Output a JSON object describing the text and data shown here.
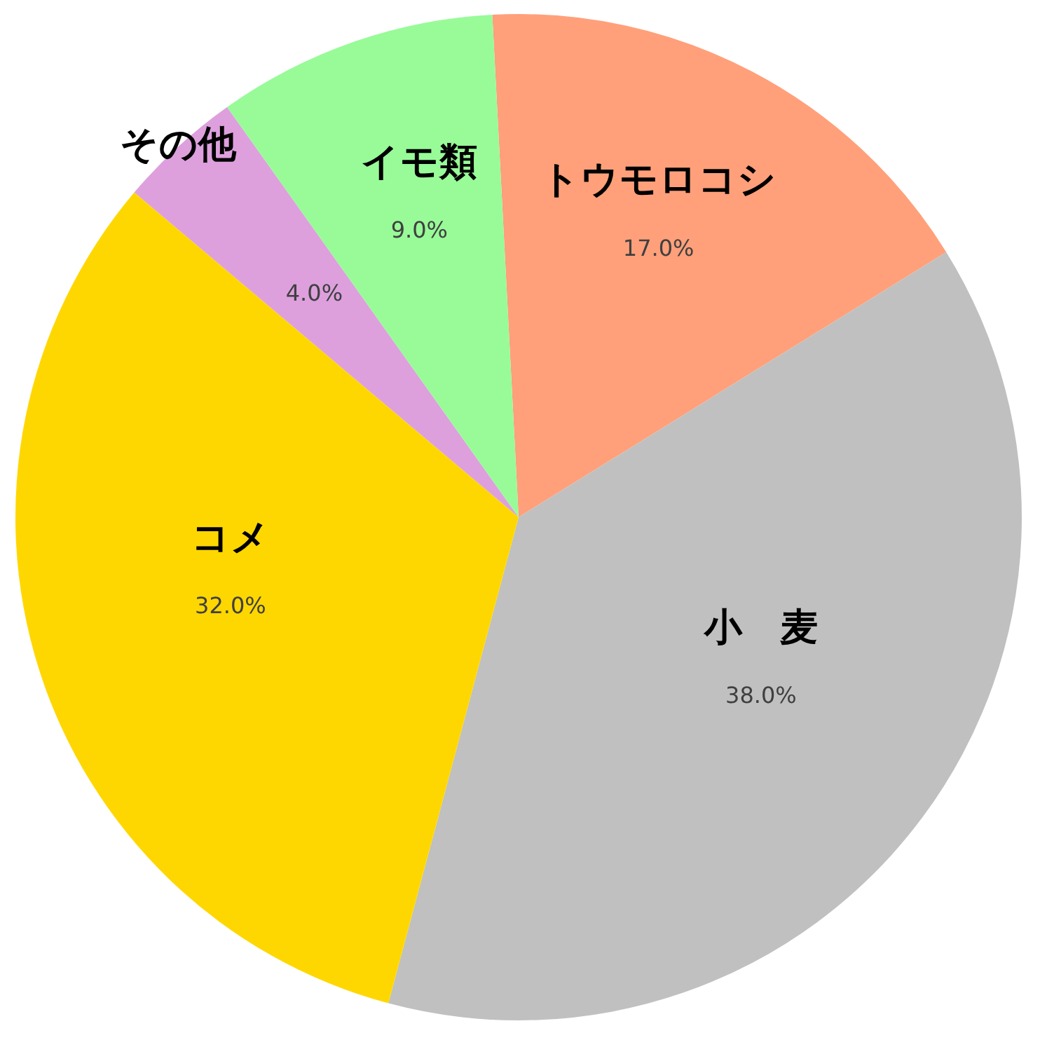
{
  "chart_data": {
    "type": "pie",
    "categories": [
      "トウモロコシ",
      "小　麦",
      "コメ",
      "その他",
      "イモ類"
    ],
    "values": [
      17,
      38,
      32,
      4,
      9
    ],
    "colors": [
      "#ffa07a",
      "#c0c0c0",
      "#ffd700",
      "#dda0dd",
      "#98fb98"
    ],
    "value_labels": [
      "17.0%",
      "38.0%",
      "32.0%",
      "4.0%",
      "9.0%"
    ]
  }
}
